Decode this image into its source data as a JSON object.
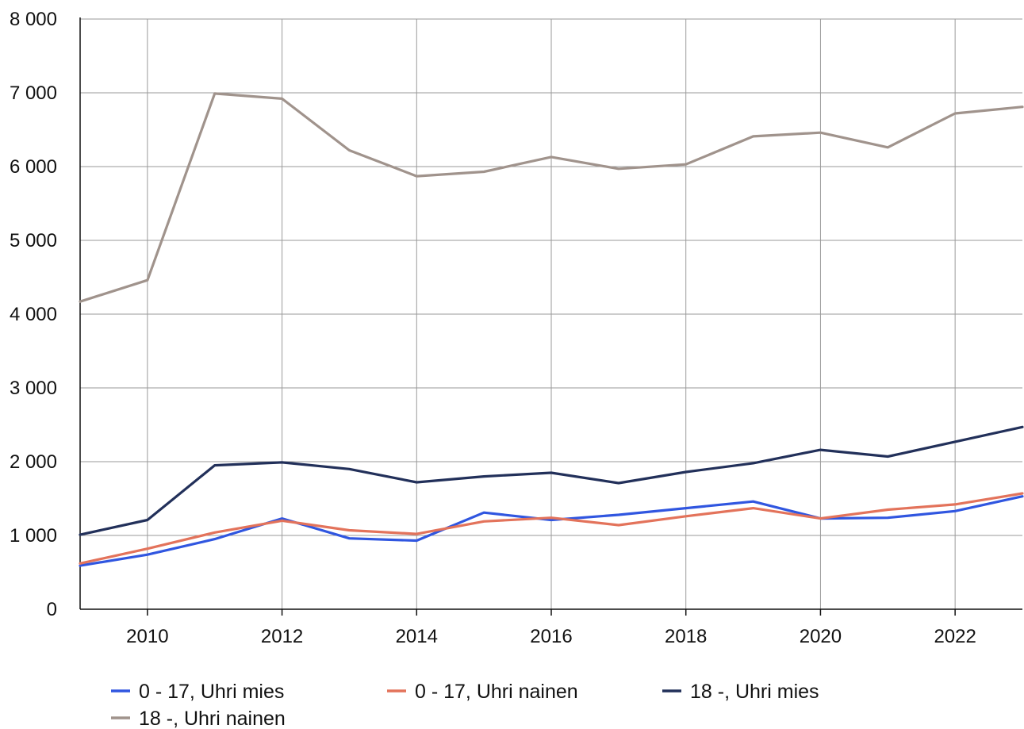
{
  "chart_data": {
    "type": "line",
    "title": "",
    "xlabel": "",
    "ylabel": "",
    "x": [
      2009,
      2010,
      2011,
      2012,
      2013,
      2014,
      2015,
      2016,
      2017,
      2018,
      2019,
      2020,
      2021,
      2022,
      2023
    ],
    "xlim": [
      2009,
      2023
    ],
    "ylim": [
      0,
      8000
    ],
    "grid": true,
    "legend_position": "bottom",
    "x_ticks": [
      {
        "value": 2010,
        "label": "2010"
      },
      {
        "value": 2012,
        "label": "2012"
      },
      {
        "value": 2014,
        "label": "2014"
      },
      {
        "value": 2016,
        "label": "2016"
      },
      {
        "value": 2018,
        "label": "2018"
      },
      {
        "value": 2020,
        "label": "2020"
      },
      {
        "value": 2022,
        "label": "2022"
      }
    ],
    "y_ticks": [
      {
        "value": 0,
        "label": "0"
      },
      {
        "value": 1000,
        "label": "1 000"
      },
      {
        "value": 2000,
        "label": "2 000"
      },
      {
        "value": 3000,
        "label": "3 000"
      },
      {
        "value": 4000,
        "label": "4 000"
      },
      {
        "value": 5000,
        "label": "5 000"
      },
      {
        "value": 6000,
        "label": "6 000"
      },
      {
        "value": 7000,
        "label": "7 000"
      },
      {
        "value": 8000,
        "label": "8 000"
      }
    ],
    "series": [
      {
        "name": "0 - 17, Uhri mies",
        "color": "#3056e0",
        "values": [
          590,
          740,
          950,
          1230,
          960,
          930,
          1310,
          1210,
          1280,
          1370,
          1460,
          1230,
          1240,
          1330,
          1530
        ]
      },
      {
        "name": "0 - 17, Uhri nainen",
        "color": "#e3735b",
        "values": [
          620,
          820,
          1040,
          1200,
          1070,
          1020,
          1190,
          1240,
          1140,
          1260,
          1370,
          1230,
          1350,
          1420,
          1570
        ]
      },
      {
        "name": "18 -, Uhri mies",
        "color": "#22305a",
        "values": [
          1010,
          1210,
          1950,
          1990,
          1900,
          1720,
          1800,
          1850,
          1710,
          1860,
          1980,
          2160,
          2070,
          2270,
          2470
        ]
      },
      {
        "name": "18 -, Uhri nainen",
        "color": "#a0938c",
        "values": [
          4170,
          4460,
          6990,
          6920,
          6220,
          5870,
          5930,
          6130,
          5970,
          6030,
          6410,
          6460,
          6260,
          6720,
          6810
        ]
      }
    ]
  }
}
